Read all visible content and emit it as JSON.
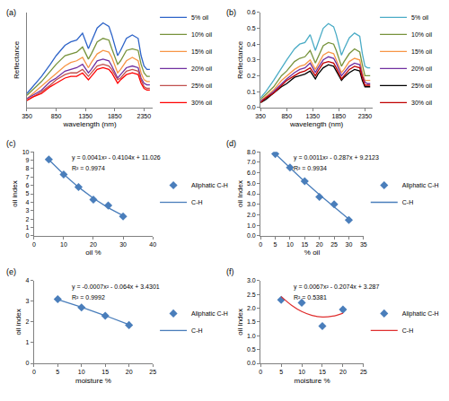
{
  "chart_data": [
    {
      "type": "line",
      "panel": "(a)",
      "x_label": "wavelength (nm)",
      "y_label": "Reflectance",
      "x": [
        350,
        450,
        600,
        750,
        850,
        1000,
        1100,
        1200,
        1300,
        1400,
        1450,
        1550,
        1650,
        1750,
        1800,
        1900,
        1950,
        2050,
        2150,
        2250,
        2300,
        2350,
        2400,
        2450
      ],
      "xlim": [
        350,
        2500
      ],
      "xticks": [
        350,
        850,
        1350,
        1850,
        2350
      ],
      "ylim": [
        0,
        0.55
      ],
      "tick_labels": "x",
      "grid": false,
      "legend": "right",
      "series": [
        {
          "name": "5% oil",
          "color": "#2e64c8",
          "values": [
            0.08,
            0.12,
            0.18,
            0.25,
            0.3,
            0.36,
            0.38,
            0.39,
            0.43,
            0.34,
            0.38,
            0.46,
            0.49,
            0.47,
            0.42,
            0.3,
            0.33,
            0.4,
            0.42,
            0.4,
            0.3,
            0.24,
            0.22,
            0.22
          ]
        },
        {
          "name": "10% oil",
          "color": "#77933c",
          "values": [
            0.07,
            0.1,
            0.15,
            0.21,
            0.25,
            0.3,
            0.31,
            0.32,
            0.35,
            0.28,
            0.31,
            0.38,
            0.4,
            0.39,
            0.34,
            0.25,
            0.27,
            0.33,
            0.34,
            0.33,
            0.25,
            0.2,
            0.18,
            0.18
          ]
        },
        {
          "name": "15% oil",
          "color": "#f79646",
          "values": [
            0.05,
            0.08,
            0.12,
            0.17,
            0.2,
            0.24,
            0.26,
            0.27,
            0.29,
            0.23,
            0.26,
            0.31,
            0.33,
            0.32,
            0.29,
            0.2,
            0.22,
            0.27,
            0.29,
            0.27,
            0.2,
            0.16,
            0.15,
            0.15
          ]
        },
        {
          "name": "20% oil",
          "color": "#7030a0",
          "values": [
            0.05,
            0.07,
            0.1,
            0.15,
            0.17,
            0.21,
            0.22,
            0.23,
            0.25,
            0.2,
            0.22,
            0.27,
            0.28,
            0.27,
            0.24,
            0.17,
            0.19,
            0.23,
            0.24,
            0.23,
            0.17,
            0.14,
            0.13,
            0.13
          ]
        },
        {
          "name": "25% oil",
          "color": "#c0504d",
          "values": [
            0.04,
            0.06,
            0.09,
            0.13,
            0.16,
            0.19,
            0.2,
            0.2,
            0.22,
            0.18,
            0.2,
            0.24,
            0.25,
            0.24,
            0.22,
            0.16,
            0.17,
            0.21,
            0.22,
            0.21,
            0.16,
            0.12,
            0.11,
            0.11
          ]
        },
        {
          "name": "30% oil",
          "color": "#ff0000",
          "values": [
            0.04,
            0.06,
            0.08,
            0.12,
            0.14,
            0.17,
            0.18,
            0.18,
            0.2,
            0.16,
            0.18,
            0.22,
            0.23,
            0.22,
            0.2,
            0.14,
            0.16,
            0.19,
            0.2,
            0.19,
            0.14,
            0.11,
            0.1,
            0.1
          ]
        }
      ]
    },
    {
      "type": "line",
      "panel": "(b)",
      "x_label": "wavelength (nm)",
      "y_label": "Reflectance",
      "x": [
        350,
        450,
        600,
        750,
        850,
        1000,
        1100,
        1200,
        1300,
        1400,
        1450,
        1550,
        1650,
        1750,
        1800,
        1900,
        1950,
        2050,
        2150,
        2250,
        2300,
        2350,
        2400,
        2450
      ],
      "xlim": [
        350,
        2500
      ],
      "xticks": [
        350,
        850,
        1350,
        1850,
        2350
      ],
      "ylim": [
        0,
        0.6
      ],
      "yticks": [
        {
          "value": 0,
          "label": "0.0"
        },
        0.1,
        0.2,
        0.3,
        0.4,
        0.5,
        0.6
      ],
      "grid": false,
      "legend": "right",
      "series": [
        {
          "name": "5% oil",
          "color": "#4bacc6",
          "values": [
            0.06,
            0.1,
            0.17,
            0.25,
            0.3,
            0.37,
            0.4,
            0.41,
            0.46,
            0.36,
            0.41,
            0.5,
            0.53,
            0.51,
            0.46,
            0.33,
            0.37,
            0.44,
            0.47,
            0.45,
            0.34,
            0.26,
            0.25,
            0.25
          ]
        },
        {
          "name": "10% oil",
          "color": "#77933c",
          "values": [
            0.05,
            0.08,
            0.13,
            0.2,
            0.23,
            0.29,
            0.31,
            0.32,
            0.36,
            0.28,
            0.32,
            0.39,
            0.41,
            0.4,
            0.36,
            0.26,
            0.29,
            0.34,
            0.37,
            0.35,
            0.27,
            0.2,
            0.2,
            0.2
          ]
        },
        {
          "name": "15% oil",
          "color": "#f79646",
          "values": [
            0.04,
            0.07,
            0.11,
            0.17,
            0.2,
            0.24,
            0.26,
            0.27,
            0.3,
            0.24,
            0.27,
            0.33,
            0.35,
            0.34,
            0.3,
            0.22,
            0.24,
            0.29,
            0.31,
            0.3,
            0.22,
            0.17,
            0.17,
            0.17
          ]
        },
        {
          "name": "20% oil",
          "color": "#7030a0",
          "values": [
            0.04,
            0.06,
            0.1,
            0.15,
            0.18,
            0.22,
            0.24,
            0.25,
            0.28,
            0.22,
            0.25,
            0.3,
            0.32,
            0.31,
            0.28,
            0.2,
            0.22,
            0.26,
            0.28,
            0.27,
            0.2,
            0.16,
            0.15,
            0.15
          ]
        },
        {
          "name": "25% oil",
          "color": "#000000",
          "values": [
            0.03,
            0.05,
            0.09,
            0.13,
            0.15,
            0.19,
            0.2,
            0.21,
            0.23,
            0.18,
            0.21,
            0.25,
            0.27,
            0.26,
            0.23,
            0.17,
            0.19,
            0.22,
            0.24,
            0.23,
            0.17,
            0.13,
            0.13,
            0.13
          ]
        },
        {
          "name": "30% oil",
          "color": "#c00000",
          "values": [
            0.03,
            0.06,
            0.09,
            0.14,
            0.17,
            0.2,
            0.22,
            0.23,
            0.25,
            0.2,
            0.23,
            0.28,
            0.29,
            0.28,
            0.25,
            0.18,
            0.2,
            0.24,
            0.26,
            0.25,
            0.19,
            0.14,
            0.14,
            0.14
          ]
        }
      ]
    },
    {
      "type": "scatter",
      "panel": "(c)",
      "x_label": "oil %",
      "y_label": "oil index",
      "xlim": [
        0,
        40
      ],
      "xticks": [
        0,
        10,
        20,
        30,
        40
      ],
      "ylim": [
        0,
        10
      ],
      "yticks": [
        0,
        1,
        2,
        3,
        4,
        5,
        6,
        7,
        8,
        9,
        10
      ],
      "grid": false,
      "legend": "right",
      "annotations": [
        "y = 0.0041x² - 0.4104x + 11.026",
        "R² = 0.9974"
      ],
      "series": [
        {
          "name": "Aliphatic C-H",
          "type": "scatter",
          "marker": "diamond",
          "color": "#4a7ebb",
          "x": [
            5,
            10,
            15,
            20,
            25,
            30
          ],
          "values": [
            9.1,
            7.3,
            5.8,
            4.3,
            3.6,
            2.3
          ]
        },
        {
          "name": "C-H",
          "type": "line",
          "color": "#4a7ebb",
          "x": [
            5,
            10,
            15,
            20,
            25,
            30
          ],
          "values": [
            9.07,
            7.33,
            5.79,
            4.46,
            3.33,
            2.4
          ]
        }
      ]
    },
    {
      "type": "scatter",
      "panel": "(d)",
      "x_label": "% oil",
      "y_label": "oil Index",
      "xlim": [
        0,
        35
      ],
      "xticks": [
        0,
        5,
        10,
        15,
        20,
        25,
        30,
        35
      ],
      "ylim": [
        0,
        8
      ],
      "yticks": [
        {
          "value": 0,
          "label": "0.0"
        },
        {
          "value": 1,
          "label": "1.0"
        },
        {
          "value": 2,
          "label": "2.0"
        },
        {
          "value": 3,
          "label": "3.0"
        },
        {
          "value": 4,
          "label": "4.0"
        },
        {
          "value": 5,
          "label": "5.0"
        },
        {
          "value": 6,
          "label": "6.0"
        },
        {
          "value": 7,
          "label": "7.0"
        },
        {
          "value": 8,
          "label": "8.0"
        }
      ],
      "grid": false,
      "legend": "right",
      "annotations": [
        "y = 0.0011x² - 0.287x + 9.2123",
        "R² = 0.9934"
      ],
      "series": [
        {
          "name": "Aliphatic C-H",
          "type": "scatter",
          "marker": "diamond",
          "color": "#4a7ebb",
          "x": [
            5,
            10,
            15,
            20,
            25,
            30
          ],
          "values": [
            7.8,
            6.5,
            5.2,
            3.7,
            3.0,
            1.5
          ]
        },
        {
          "name": "C-H",
          "type": "line",
          "color": "#4a7ebb",
          "x": [
            5,
            10,
            15,
            20,
            25,
            30
          ],
          "values": [
            7.8,
            6.45,
            5.15,
            3.91,
            2.73,
            1.59
          ]
        }
      ]
    },
    {
      "type": "scatter",
      "panel": "(e)",
      "x_label": "moisture %",
      "y_label": "oil index",
      "xlim": [
        0,
        25
      ],
      "xticks": [
        0,
        5,
        10,
        15,
        20,
        25
      ],
      "ylim": [
        0,
        4
      ],
      "yticks": [
        0,
        1,
        2,
        3,
        4
      ],
      "grid": false,
      "legend": "right",
      "annotations": [
        "y = -0.0007x² - 0.064x + 3.4301",
        "R² = 0.9992"
      ],
      "series": [
        {
          "name": "Aliphatic C-H",
          "type": "scatter",
          "marker": "diamond",
          "color": "#4a7ebb",
          "x": [
            5,
            10,
            15,
            20
          ],
          "values": [
            3.1,
            2.7,
            2.3,
            1.85
          ]
        },
        {
          "name": "C-H",
          "type": "line",
          "color": "#4a7ebb",
          "x": [
            5,
            10,
            15,
            20
          ],
          "values": [
            3.09,
            2.72,
            2.31,
            1.87
          ]
        }
      ]
    },
    {
      "type": "scatter",
      "panel": "(f)",
      "x_label": "moisture %",
      "y_label": "oil Index",
      "xlim": [
        0,
        25
      ],
      "xticks": [
        0,
        5,
        10,
        15,
        20,
        25
      ],
      "ylim": [
        0,
        3
      ],
      "yticks": [
        {
          "value": 0,
          "label": "0.0"
        },
        0.5,
        {
          "value": 1,
          "label": "1.0"
        },
        1.5,
        {
          "value": 2,
          "label": "2.0"
        },
        2.5,
        {
          "value": 3,
          "label": "3.0"
        }
      ],
      "grid": false,
      "legend": "right",
      "annotations": [
        "y = 0.0067x² - 0.2074x + 3.287",
        "R² = 0.5381"
      ],
      "series": [
        {
          "name": "Aliphatic C-H",
          "type": "scatter",
          "marker": "diamond",
          "color": "#4a7ebb",
          "x": [
            5,
            10,
            15,
            20
          ],
          "values": [
            2.3,
            2.2,
            1.35,
            1.95
          ]
        },
        {
          "name": "C-H",
          "type": "line",
          "line_style": "smooth",
          "color": "#e03030",
          "x": [
            5,
            7.5,
            10,
            12.5,
            15,
            17.5,
            20
          ],
          "values": [
            2.42,
            2.11,
            1.88,
            1.74,
            1.68,
            1.71,
            1.82
          ]
        }
      ]
    }
  ]
}
